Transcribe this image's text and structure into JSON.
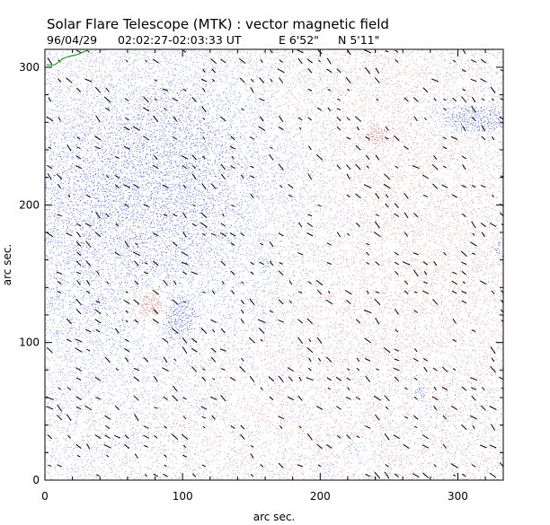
{
  "chart_data": {
    "type": "heatmap",
    "title": "Solar Flare Telescope (MTK) : vector magnetic field",
    "subtitle": {
      "date": "96/04/29",
      "time_range": "02:02:27-02:03:33 UT",
      "position_e": "E 6'52\"",
      "position_n": "N 5'11\""
    },
    "xlabel": "arc sec.",
    "ylabel": "arc sec.",
    "xlim": [
      0,
      333
    ],
    "ylim": [
      0,
      313
    ],
    "x_ticks": [
      {
        "value": 0,
        "label": "0"
      },
      {
        "value": 100,
        "label": "100"
      },
      {
        "value": 200,
        "label": "200"
      },
      {
        "value": 300,
        "label": "300"
      }
    ],
    "y_ticks": [
      {
        "value": 0,
        "label": "0"
      },
      {
        "value": 100,
        "label": "100"
      },
      {
        "value": 200,
        "label": "200"
      },
      {
        "value": 300,
        "label": "300"
      }
    ],
    "grid": false,
    "colors": {
      "positive_polarity": "#e05050",
      "negative_polarity": "#4a5ae6",
      "transverse_vectors": "#000000",
      "contour": "#2aa02a",
      "background": "#ffffff"
    },
    "polarity_regions": [
      {
        "polarity": "negative",
        "x": 80,
        "y": 235,
        "strength": 0.45
      },
      {
        "polarity": "negative",
        "x": 25,
        "y": 200,
        "strength": 0.35
      },
      {
        "polarity": "negative",
        "x": 140,
        "y": 230,
        "strength": 0.3
      },
      {
        "polarity": "negative",
        "x": 20,
        "y": 110,
        "strength": 0.3
      },
      {
        "polarity": "negative",
        "x": 150,
        "y": 140,
        "strength": 0.25
      },
      {
        "polarity": "positive",
        "x": 230,
        "y": 270,
        "strength": 0.35
      },
      {
        "polarity": "positive",
        "x": 210,
        "y": 150,
        "strength": 0.25
      },
      {
        "polarity": "positive",
        "x": 300,
        "y": 150,
        "strength": 0.25
      },
      {
        "polarity": "positive",
        "x": 170,
        "y": 60,
        "strength": 0.2
      }
    ],
    "concentrations": [
      {
        "polarity": "positive",
        "x": 76,
        "y": 127,
        "sx": 7,
        "sy": 5,
        "strength": 0.95
      },
      {
        "polarity": "negative",
        "x": 97,
        "y": 117,
        "sx": 6,
        "sy": 7,
        "strength": 0.9
      },
      {
        "polarity": "negative",
        "x": 312,
        "y": 262,
        "sx": 16,
        "sy": 6,
        "strength": 0.9
      },
      {
        "polarity": "positive",
        "x": 240,
        "y": 250,
        "sx": 5,
        "sy": 4,
        "strength": 0.55
      },
      {
        "polarity": "negative",
        "x": 330,
        "y": 168,
        "sx": 4,
        "sy": 6,
        "strength": 0.5
      },
      {
        "polarity": "negative",
        "x": 272,
        "y": 62,
        "sx": 3,
        "sy": 5,
        "strength": 0.45
      },
      {
        "polarity": "negative",
        "x": 160,
        "y": 157,
        "sx": 3,
        "sy": 4,
        "strength": 0.35
      },
      {
        "polarity": "negative",
        "x": 225,
        "y": 25,
        "sx": 4,
        "sy": 3,
        "strength": 0.3
      }
    ],
    "vector_field": {
      "grid_step": 7,
      "dominant_angle_deg": -40,
      "angle_spread_deg": 20,
      "length_range_arcsec": [
        2,
        6
      ],
      "coverage": 0.3
    }
  }
}
